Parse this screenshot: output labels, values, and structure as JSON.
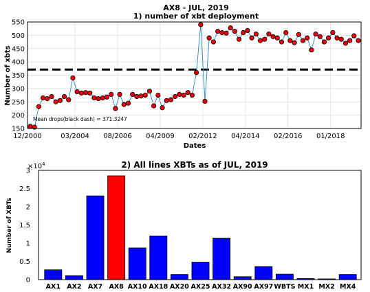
{
  "figure_title": "AX8 - JUL, 2019",
  "chart_data": [
    {
      "type": "line",
      "title": "1) number of xbt deployment",
      "xlabel": "Dates",
      "ylabel": "Number of xbts",
      "ylim": [
        150,
        550
      ],
      "yticks": [
        150,
        200,
        250,
        300,
        350,
        400,
        450,
        500,
        550
      ],
      "xtick_labels": [
        "12/2000",
        "03/2004",
        "08/2006",
        "04/2009",
        "02/2012",
        "04/2014",
        "02/2016",
        "01/2018"
      ],
      "grid": true,
      "line_color": "#3a8fc4",
      "marker_color": "#e8000b",
      "y": [
        158,
        155,
        232,
        265,
        262,
        270,
        250,
        255,
        270,
        258,
        340,
        288,
        283,
        285,
        283,
        265,
        262,
        265,
        268,
        278,
        225,
        278,
        240,
        245,
        278,
        270,
        272,
        275,
        290,
        235,
        275,
        228,
        255,
        258,
        270,
        278,
        275,
        285,
        275,
        360,
        540,
        252,
        490,
        475,
        515,
        510,
        508,
        528,
        515,
        485,
        510,
        518,
        490,
        505,
        480,
        485,
        505,
        495,
        490,
        475,
        510,
        480,
        472,
        503,
        480,
        490,
        445,
        505,
        495,
        475,
        490,
        510,
        490,
        485,
        470,
        480,
        498,
        480
      ],
      "mean": 371.3247,
      "mean_label": "Mean drops(black dash) = 371.3247",
      "mean_style": "black dashed"
    },
    {
      "type": "bar",
      "title": "2) All lines XBTs as of JUL, 2019",
      "ylabel": "Number of XBTs",
      "scale_label": "×10",
      "scale_exponent": "4",
      "ylim": [
        0,
        3
      ],
      "yticks": [
        0,
        0.5,
        1,
        1.5,
        2,
        2.5,
        3
      ],
      "categories": [
        "AX1",
        "AX2",
        "AX7",
        "AX8",
        "AX10",
        "AX18",
        "AX20",
        "AX25",
        "AX32",
        "AX90",
        "AX97",
        "WBTS",
        "MX1",
        "MX2",
        "MX4"
      ],
      "values": [
        0.27,
        0.11,
        2.3,
        2.85,
        0.87,
        1.2,
        0.14,
        0.48,
        1.14,
        0.08,
        0.36,
        0.15,
        0.03,
        0.02,
        0.14
      ],
      "bar_color": "#0000ff",
      "highlight": "AX8",
      "highlight_color": "#ff0000"
    }
  ]
}
